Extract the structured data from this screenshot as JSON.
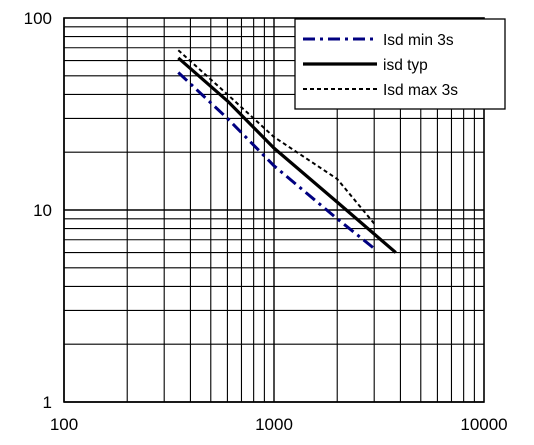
{
  "chart_data": {
    "type": "line",
    "xscale": "log",
    "yscale": "log",
    "xlim": [
      100,
      10000
    ],
    "ylim": [
      1,
      100
    ],
    "grid": true,
    "legend_position": "top-right",
    "x_tick_labels": [
      "100",
      "1000",
      "10000"
    ],
    "y_tick_labels": [
      "100",
      "10",
      "1"
    ],
    "series": [
      {
        "name": "Isd min 3s",
        "style": "dash-dot",
        "color": "#000080",
        "points": [
          [
            350,
            52
          ],
          [
            600,
            30
          ],
          [
            1000,
            17
          ],
          [
            2000,
            9
          ],
          [
            3000,
            6.3
          ]
        ]
      },
      {
        "name": "isd typ",
        "style": "solid",
        "color": "#000000",
        "points": [
          [
            350,
            62
          ],
          [
            600,
            37
          ],
          [
            1000,
            21
          ],
          [
            2000,
            11
          ],
          [
            3000,
            7.5
          ],
          [
            3800,
            6
          ]
        ]
      },
      {
        "name": "Isd max 3s",
        "style": "dotted",
        "color": "#000000",
        "points": [
          [
            350,
            68
          ],
          [
            600,
            40
          ],
          [
            1000,
            24
          ],
          [
            2000,
            14.5
          ],
          [
            3000,
            8.5
          ]
        ]
      }
    ]
  }
}
